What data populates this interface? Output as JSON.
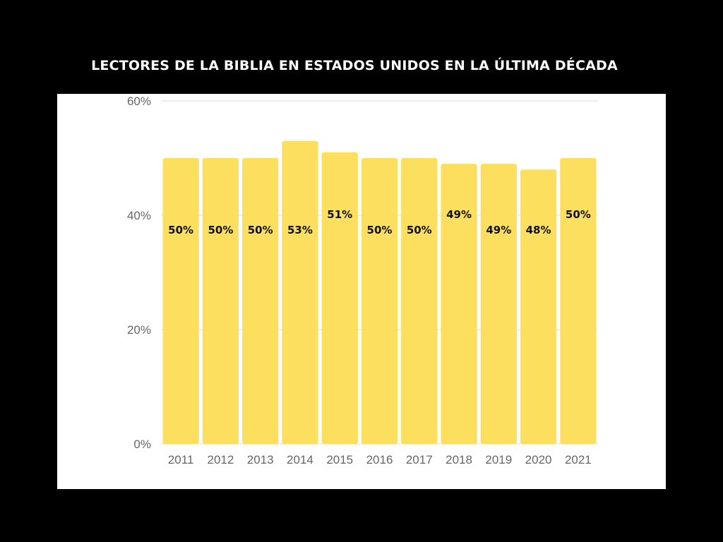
{
  "title": "LECTORES DE LA BIBLIA EN ESTADOS UNIDOS EN LA ÚLTIMA DÉCADA",
  "chart_data": {
    "type": "bar",
    "title": "LECTORES DE LA BIBLIA EN ESTADOS UNIDOS EN LA ÚLTIMA DÉCADA",
    "xlabel": "",
    "ylabel": "",
    "categories": [
      "2011",
      "2012",
      "2013",
      "2014",
      "2015",
      "2016",
      "2017",
      "2018",
      "2019",
      "2020",
      "2021"
    ],
    "values": [
      50,
      50,
      50,
      53,
      51,
      50,
      50,
      49,
      49,
      48,
      50
    ],
    "data_labels": [
      "50%",
      "50%",
      "50%",
      "53%",
      "51%",
      "50%",
      "50%",
      "49%",
      "49%",
      "48%",
      "50%"
    ],
    "label_placement": [
      "low",
      "low",
      "low",
      "low",
      "high",
      "low",
      "low",
      "high",
      "low",
      "low",
      "high"
    ],
    "ylim": [
      0,
      60
    ],
    "yticks": [
      0,
      20,
      40,
      60
    ],
    "ytick_labels": [
      "0%",
      "20%",
      "40%",
      "60%"
    ],
    "grid": true,
    "legend": "none",
    "colors": {
      "bar": "#FDDF5F",
      "background": "#000000",
      "panel": "#FFFFFF",
      "gridline": "#DDDDDD",
      "title": "#FFFFFF"
    }
  }
}
